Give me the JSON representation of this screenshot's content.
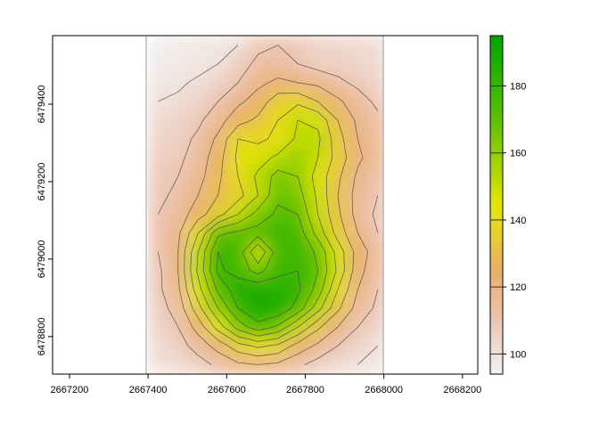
{
  "chart_data": {
    "type": "heatmap",
    "title": "",
    "xlabel": "",
    "ylabel": "",
    "xlim": [
      2667157,
      2668239
    ],
    "ylim": [
      6478703,
      6479577
    ],
    "raster_extent": {
      "xmin": 2667400,
      "xmax": 2668010,
      "ymin": 6478703,
      "ymax": 6479577
    },
    "x_ticks": [
      2667200,
      2667400,
      2667600,
      2667800,
      2668000,
      2668200
    ],
    "y_ticks": [
      6478800,
      6479000,
      6479200,
      6479400
    ],
    "contour_levels": [
      100,
      110,
      120,
      130,
      140,
      150,
      160,
      170,
      180,
      190
    ],
    "legend": {
      "position": "right",
      "range": [
        94,
        195
      ],
      "ticks": [
        100,
        120,
        140,
        160,
        180
      ]
    },
    "colors": {
      "stops": [
        [
          94,
          "#F2F2F2"
        ],
        [
          110,
          "#ECC4B2"
        ],
        [
          125,
          "#E9AE68"
        ],
        [
          144,
          "#E6E600"
        ],
        [
          170,
          "#5EC000"
        ],
        [
          195,
          "#00A600"
        ]
      ],
      "contour": "#4a4a4a",
      "gridline": "#999999"
    },
    "grid_note_rows_north_to_south": true,
    "values": [
      [
        95,
        96,
        97,
        98,
        100,
        108,
        110,
        108,
        104,
        103,
        102,
        101
      ],
      [
        96,
        97,
        98,
        100,
        106,
        112,
        114,
        110,
        106,
        106,
        104,
        102
      ],
      [
        98,
        99,
        101,
        104,
        110,
        118,
        122,
        120,
        118,
        112,
        108,
        104
      ],
      [
        100,
        101,
        104,
        110,
        118,
        124,
        136,
        138,
        130,
        122,
        114,
        108
      ],
      [
        102,
        104,
        108,
        116,
        126,
        132,
        140,
        150,
        148,
        130,
        118,
        112
      ],
      [
        104,
        106,
        112,
        122,
        140,
        138,
        142,
        152,
        152,
        134,
        120,
        114
      ],
      [
        106,
        108,
        114,
        126,
        142,
        146,
        152,
        158,
        150,
        136,
        122,
        114
      ],
      [
        108,
        110,
        116,
        128,
        140,
        152,
        164,
        160,
        146,
        132,
        118,
        112
      ],
      [
        108,
        112,
        120,
        130,
        136,
        150,
        168,
        164,
        148,
        130,
        116,
        110
      ],
      [
        110,
        114,
        126,
        136,
        150,
        164,
        172,
        170,
        150,
        132,
        116,
        108
      ],
      [
        110,
        118,
        140,
        168,
        172,
        174,
        178,
        176,
        156,
        136,
        120,
        110
      ],
      [
        110,
        120,
        150,
        180,
        176,
        150,
        176,
        178,
        168,
        146,
        126,
        114
      ],
      [
        108,
        120,
        152,
        182,
        176,
        166,
        178,
        180,
        170,
        148,
        124,
        112
      ],
      [
        108,
        118,
        146,
        172,
        186,
        188,
        184,
        182,
        166,
        140,
        120,
        110
      ],
      [
        106,
        114,
        136,
        160,
        180,
        190,
        188,
        176,
        154,
        132,
        116,
        108
      ],
      [
        104,
        110,
        124,
        144,
        164,
        176,
        168,
        150,
        132,
        120,
        110,
        104
      ],
      [
        102,
        106,
        114,
        124,
        136,
        142,
        138,
        126,
        118,
        110,
        104,
        100
      ],
      [
        100,
        102,
        106,
        112,
        118,
        120,
        118,
        112,
        106,
        102,
        100,
        98
      ]
    ]
  }
}
